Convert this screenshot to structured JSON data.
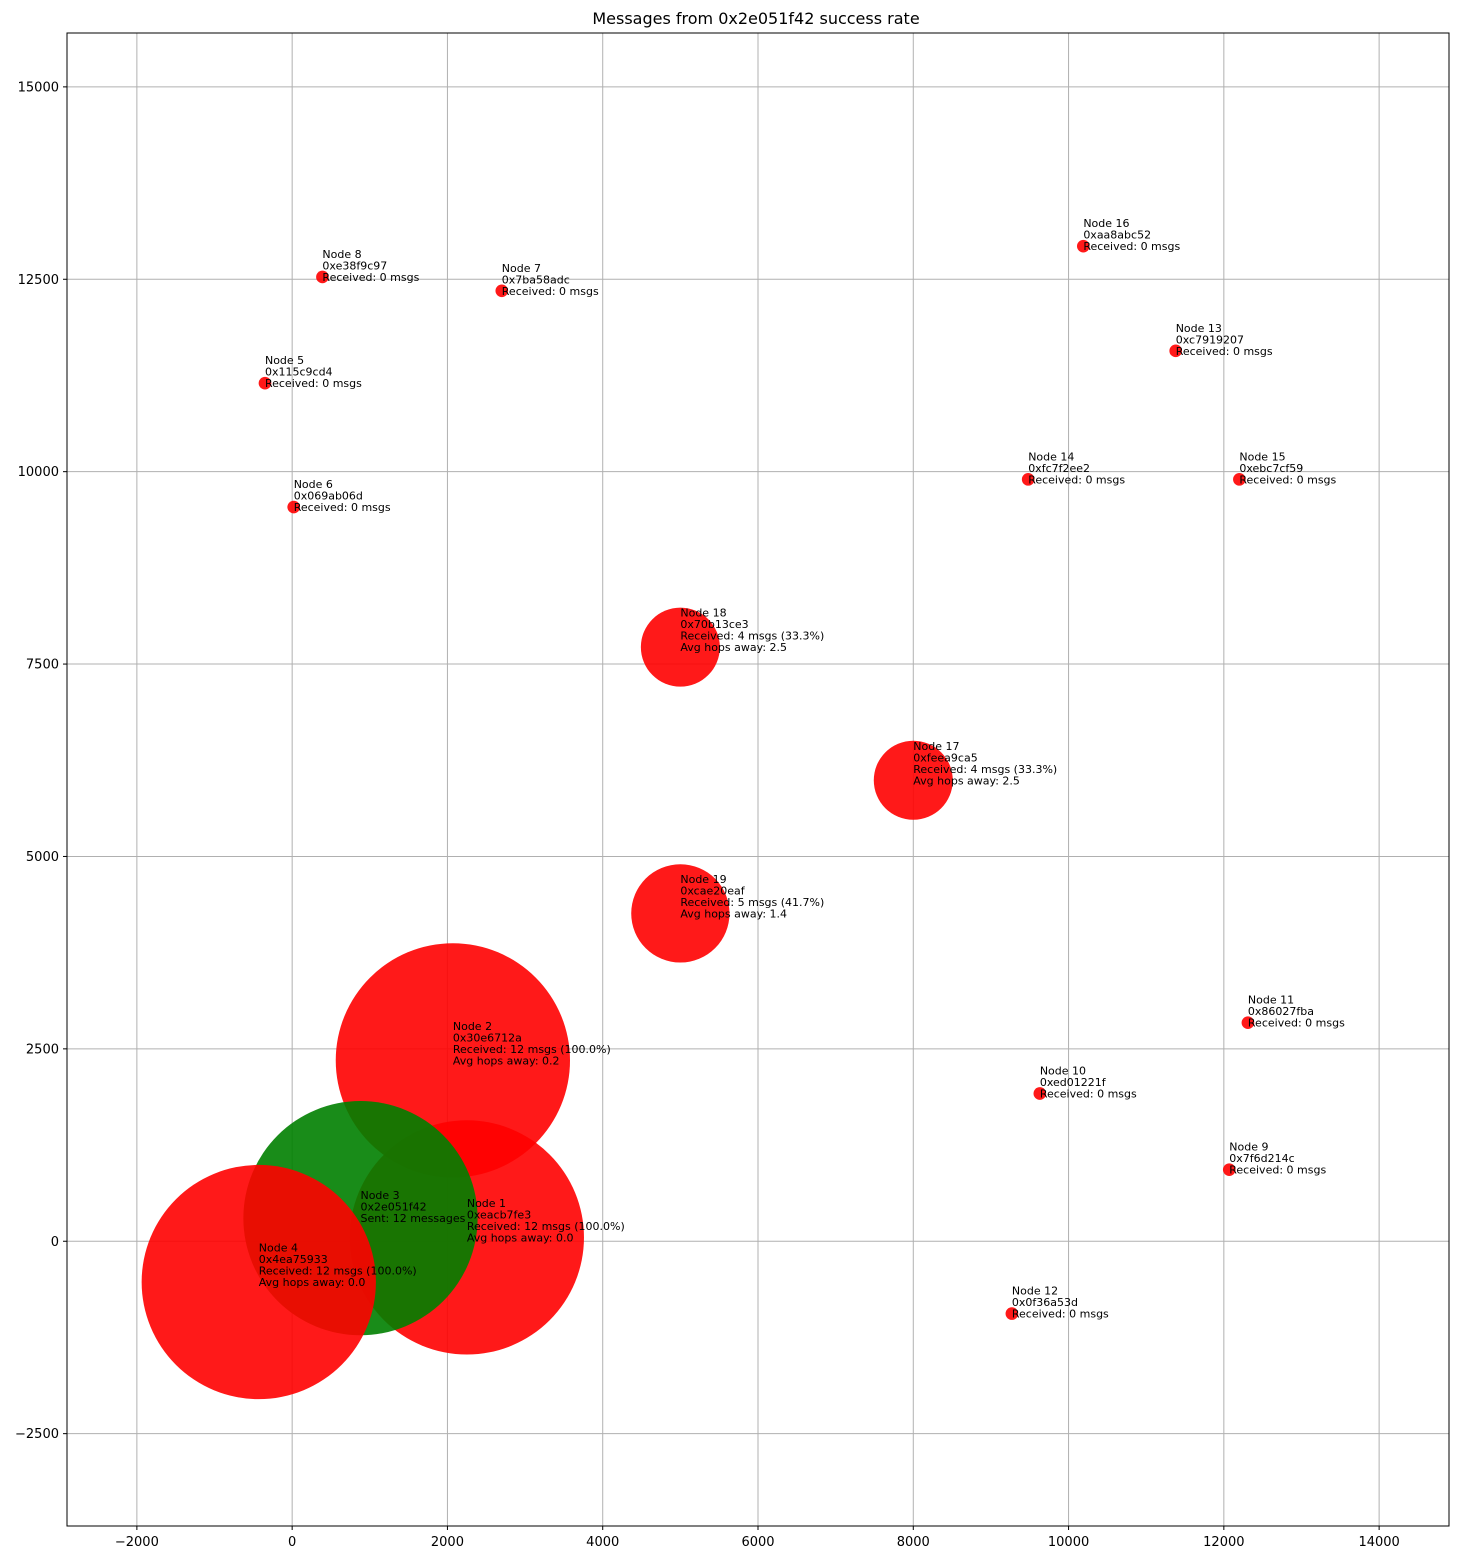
{
  "chart_data": {
    "type": "scatter",
    "title": "Messages from 0x2e051f42 success rate",
    "xlabel": "",
    "ylabel": "",
    "xlim": [
      -2900,
      14900
    ],
    "ylim": [
      -3700,
      15700
    ],
    "grid": true,
    "x_ticks": [
      -2000,
      0,
      2000,
      4000,
      6000,
      8000,
      10000,
      12000,
      14000
    ],
    "x_tick_labels": [
      "−2000",
      "0",
      "2000",
      "4000",
      "6000",
      "8000",
      "10000",
      "12000",
      "14000"
    ],
    "y_ticks": [
      -2500,
      0,
      2500,
      5000,
      7500,
      10000,
      12500,
      15000
    ],
    "y_tick_labels": [
      "−2500",
      "0",
      "2500",
      "5000",
      "7500",
      "10000",
      "12500",
      "15000"
    ],
    "colors": {
      "sender": "#008000",
      "receiver": "#ff0000"
    },
    "points": [
      {
        "x": 2250,
        "y": 50,
        "size": 12,
        "role": "receiver",
        "lines": [
          "Node 1",
          "0xeacb7fe3",
          "Received: 12 msgs (100.0%)",
          "Avg hops away: 0.0"
        ]
      },
      {
        "x": 2070,
        "y": 2350,
        "size": 12,
        "role": "receiver",
        "lines": [
          "Node 2",
          "0x30e6712a",
          "Received: 12 msgs (100.0%)",
          "Avg hops away: 0.2"
        ]
      },
      {
        "x": 880,
        "y": 300,
        "size": 12,
        "role": "sender",
        "lines": [
          "Node 3",
          "0x2e051f42",
          "Sent: 12 messages"
        ]
      },
      {
        "x": -430,
        "y": -530,
        "size": 12,
        "role": "receiver",
        "lines": [
          "Node 4",
          "0x4ea75933",
          "Received: 12 msgs (100.0%)",
          "Avg hops away: 0.0"
        ]
      },
      {
        "x": -350,
        "y": 11150,
        "size": 0,
        "role": "receiver",
        "lines": [
          "Node 5",
          "0x115c9cd4",
          "Received: 0 msgs"
        ]
      },
      {
        "x": 20,
        "y": 9540,
        "size": 0,
        "role": "receiver",
        "lines": [
          "Node 6",
          "0x069ab06d",
          "Received: 0 msgs"
        ]
      },
      {
        "x": 2700,
        "y": 12350,
        "size": 0,
        "role": "receiver",
        "lines": [
          "Node 7",
          "0x7ba58adc",
          "Received: 0 msgs"
        ]
      },
      {
        "x": 390,
        "y": 12530,
        "size": 0,
        "role": "receiver",
        "lines": [
          "Node 8",
          "0xe38f9c97",
          "Received: 0 msgs"
        ]
      },
      {
        "x": 12070,
        "y": 930,
        "size": 0,
        "role": "receiver",
        "lines": [
          "Node 9",
          "0x7f6d214c",
          "Received: 0 msgs"
        ]
      },
      {
        "x": 9630,
        "y": 1920,
        "size": 0,
        "role": "receiver",
        "lines": [
          "Node 10",
          "0xed01221f",
          "Received: 0 msgs"
        ]
      },
      {
        "x": 12310,
        "y": 2840,
        "size": 0,
        "role": "receiver",
        "lines": [
          "Node 11",
          "0x86027fba",
          "Received: 0 msgs"
        ]
      },
      {
        "x": 9270,
        "y": -940,
        "size": 0,
        "role": "receiver",
        "lines": [
          "Node 12",
          "0x0f36a53d",
          "Received: 0 msgs"
        ]
      },
      {
        "x": 11380,
        "y": 11570,
        "size": 0,
        "role": "receiver",
        "lines": [
          "Node 13",
          "0xc7919207",
          "Received: 0 msgs"
        ]
      },
      {
        "x": 9480,
        "y": 9900,
        "size": 0,
        "role": "receiver",
        "lines": [
          "Node 14",
          "0xfc7f2ee2",
          "Received: 0 msgs"
        ]
      },
      {
        "x": 12200,
        "y": 9900,
        "size": 0,
        "role": "receiver",
        "lines": [
          "Node 15",
          "0xebc7cf59",
          "Received: 0 msgs"
        ]
      },
      {
        "x": 10190,
        "y": 12930,
        "size": 0,
        "role": "receiver",
        "lines": [
          "Node 16",
          "0xaa8abc52",
          "Received: 0 msgs"
        ]
      },
      {
        "x": 8000,
        "y": 5990,
        "size": 4,
        "role": "receiver",
        "lines": [
          "Node 17",
          "0xfeea9ca5",
          "Received: 4 msgs (33.3%)",
          "Avg hops away: 2.5"
        ]
      },
      {
        "x": 5000,
        "y": 7720,
        "size": 4,
        "role": "receiver",
        "lines": [
          "Node 18",
          "0x70b13ce3",
          "Received: 4 msgs (33.3%)",
          "Avg hops away: 2.5"
        ]
      },
      {
        "x": 5000,
        "y": 4260,
        "size": 5,
        "role": "receiver",
        "lines": [
          "Node 19",
          "0xcae20eaf",
          "Received: 5 msgs (41.7%)",
          "Avg hops away: 1.4"
        ]
      }
    ]
  }
}
